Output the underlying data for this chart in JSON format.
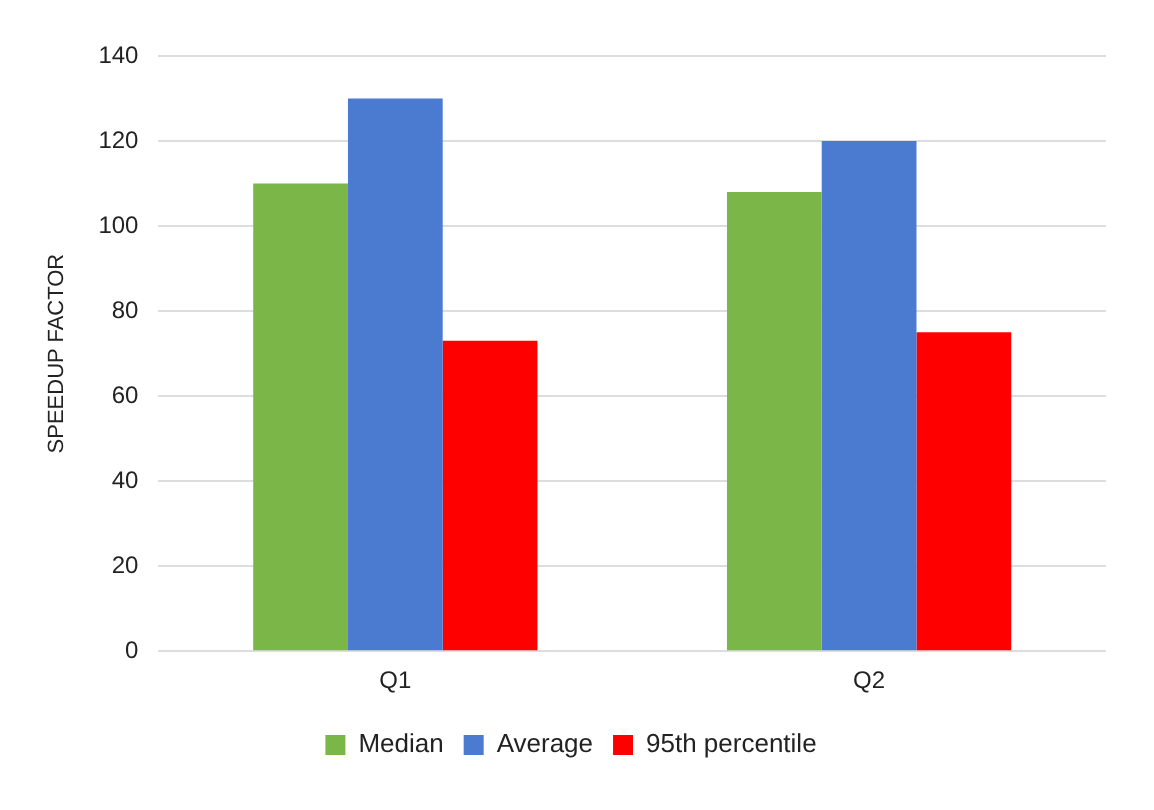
{
  "chart_data": {
    "type": "bar",
    "ylabel": "SPEEDUP FACTOR",
    "categories": [
      "Q1",
      "Q2"
    ],
    "series": [
      {
        "name": "Median",
        "color": "#7ab648",
        "values": [
          110,
          108
        ]
      },
      {
        "name": "Average",
        "color": "#4a7bd0",
        "values": [
          130,
          120
        ]
      },
      {
        "name": "95th percentile",
        "color": "#ff0000",
        "values": [
          73,
          75
        ]
      }
    ],
    "ylim": [
      0,
      140
    ],
    "yticks": [
      0,
      20,
      40,
      60,
      80,
      100,
      120,
      140
    ],
    "grid": "y",
    "legend": "bottom"
  }
}
